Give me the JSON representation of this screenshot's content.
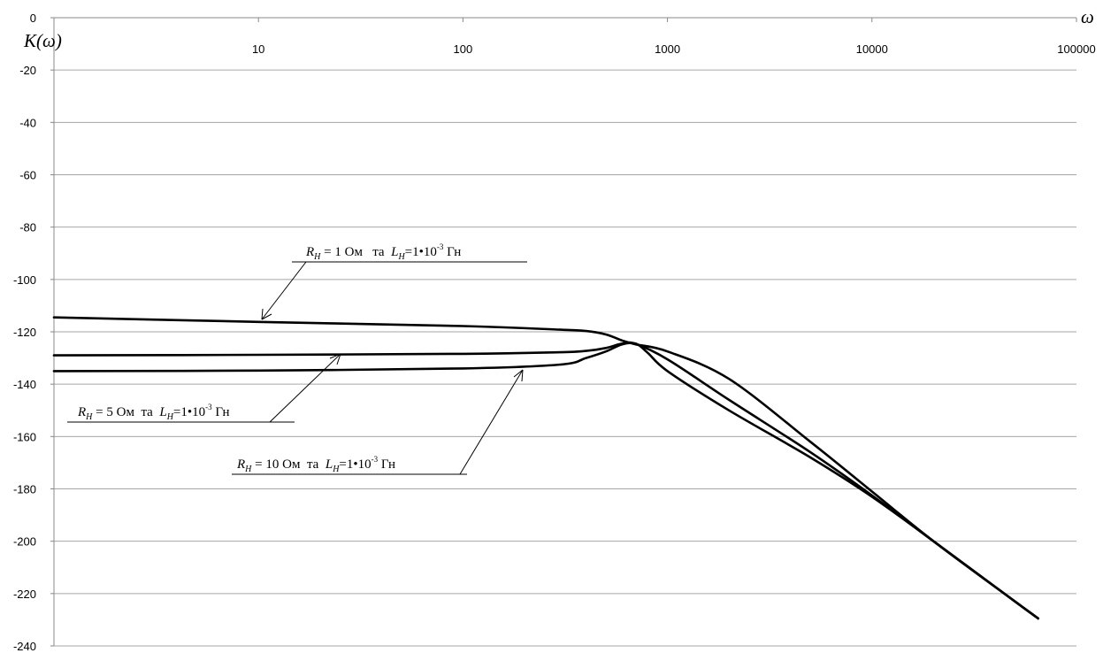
{
  "chart_data": {
    "type": "line",
    "x_scale": "log",
    "xlim": [
      1,
      100000
    ],
    "ylim": [
      -240,
      0
    ],
    "grid": true,
    "xlabel": "ω",
    "ylabel": "K(ω)",
    "x_ticks": [
      "10",
      "100",
      "1000",
      "10000",
      "100000"
    ],
    "y_ticks": [
      "0",
      "-20",
      "-40",
      "-60",
      "-80",
      "-100",
      "-120",
      "-140",
      "-160",
      "-180",
      "-200",
      "-220",
      "-240"
    ],
    "series": [
      {
        "name": "R_H = 1 Ом та L_H=1•10^-3 Гн",
        "points": [
          [
            1,
            -114.5
          ],
          [
            10,
            -116.2
          ],
          [
            100,
            -117.8
          ],
          [
            300,
            -119.2
          ],
          [
            400,
            -119.7
          ],
          [
            500,
            -121
          ],
          [
            600,
            -123.3
          ],
          [
            700,
            -124.8
          ],
          [
            1000,
            -127.5
          ],
          [
            2000,
            -138
          ],
          [
            5000,
            -162
          ],
          [
            10000,
            -181
          ],
          [
            20000,
            -200
          ],
          [
            50000,
            -223
          ],
          [
            65000,
            -229.5
          ]
        ]
      },
      {
        "name": "R_H = 5 Ом та L_H=1•10^-3 Гн",
        "points": [
          [
            1,
            -129
          ],
          [
            10,
            -128.8
          ],
          [
            100,
            -128.4
          ],
          [
            300,
            -127.8
          ],
          [
            400,
            -127.3
          ],
          [
            500,
            -126.2
          ],
          [
            600,
            -124.5
          ],
          [
            700,
            -124.6
          ],
          [
            1000,
            -130.5
          ],
          [
            2000,
            -146
          ],
          [
            5000,
            -166
          ],
          [
            10000,
            -182.5
          ],
          [
            20000,
            -200
          ],
          [
            50000,
            -223
          ],
          [
            65000,
            -229.5
          ]
        ]
      },
      {
        "name": "R_H = 10 Ом та L_H=1•10^-3 Гн",
        "points": [
          [
            1,
            -135
          ],
          [
            10,
            -134.8
          ],
          [
            100,
            -134
          ],
          [
            300,
            -132.5
          ],
          [
            400,
            -130
          ],
          [
            500,
            -127.5
          ],
          [
            600,
            -124.8
          ],
          [
            700,
            -124.5
          ],
          [
            800,
            -128
          ],
          [
            1000,
            -135
          ],
          [
            2000,
            -150
          ],
          [
            5000,
            -168
          ],
          [
            10000,
            -183
          ],
          [
            20000,
            -200
          ],
          [
            50000,
            -223
          ],
          [
            65000,
            -229.5
          ]
        ]
      }
    ],
    "annotations": [
      {
        "r": "R",
        "r_sub": "H",
        "mid": " = 1 Ом   та  ",
        "l": "L",
        "l_sub": "H",
        "coef": "=1•10",
        "exp": "-3",
        "unit": " Гн"
      },
      {
        "r": "R",
        "r_sub": "H",
        "mid": " = 5 Ом  та  ",
        "l": "L",
        "l_sub": "H",
        "coef": "=1•10",
        "exp": "-3",
        "unit": " Гн"
      },
      {
        "r": "R",
        "r_sub": "H",
        "mid": " = 10 Ом  та  ",
        "l": "L",
        "l_sub": "H",
        "coef": "=1•10",
        "exp": "-3",
        "unit": " Гн"
      }
    ]
  }
}
